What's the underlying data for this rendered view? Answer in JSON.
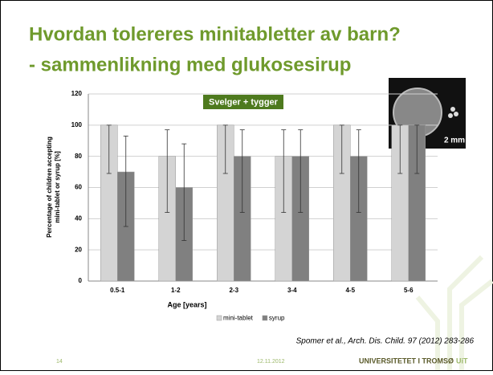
{
  "slide": {
    "title": [
      "Hvordan tolereres minitabletter av barn?",
      "- sammenlikning  med  glukosesirup"
    ],
    "photo_label": "2 mm",
    "citation": "Spomer et al., Arch. Dis. Child. 97 (2012) 283-286",
    "footer": {
      "page": "14",
      "date": "12.11.2012",
      "university": "UNIVERSITETET I TROMSØ",
      "logo": "UiT"
    }
  },
  "chart_data": {
    "type": "bar",
    "annotation": "Svelger + tygger",
    "xlabel": "Age [years]",
    "ylabel": [
      "Percentage of children accepting",
      "mini-tablet or syrup [%]"
    ],
    "categories": [
      "0.5-1",
      "1-2",
      "2-3",
      "3-4",
      "4-5",
      "5-6"
    ],
    "series": [
      {
        "name": "mini-tablet",
        "color": "#d4d4d4",
        "values": [
          100,
          80,
          100,
          80,
          100,
          100
        ],
        "lower": [
          69,
          44,
          69,
          44,
          69,
          69
        ],
        "upper": [
          100,
          97,
          100,
          97,
          100,
          100
        ]
      },
      {
        "name": "syrup",
        "color": "#808080",
        "values": [
          70,
          60,
          80,
          80,
          80,
          100
        ],
        "lower": [
          35,
          26,
          44,
          44,
          44,
          69
        ],
        "upper": [
          93,
          88,
          97,
          97,
          97,
          100
        ]
      }
    ],
    "ylim": [
      0,
      120
    ],
    "yticks": [
      0,
      20,
      40,
      60,
      80,
      100,
      120
    ],
    "grid": true,
    "legend": "bottom"
  }
}
